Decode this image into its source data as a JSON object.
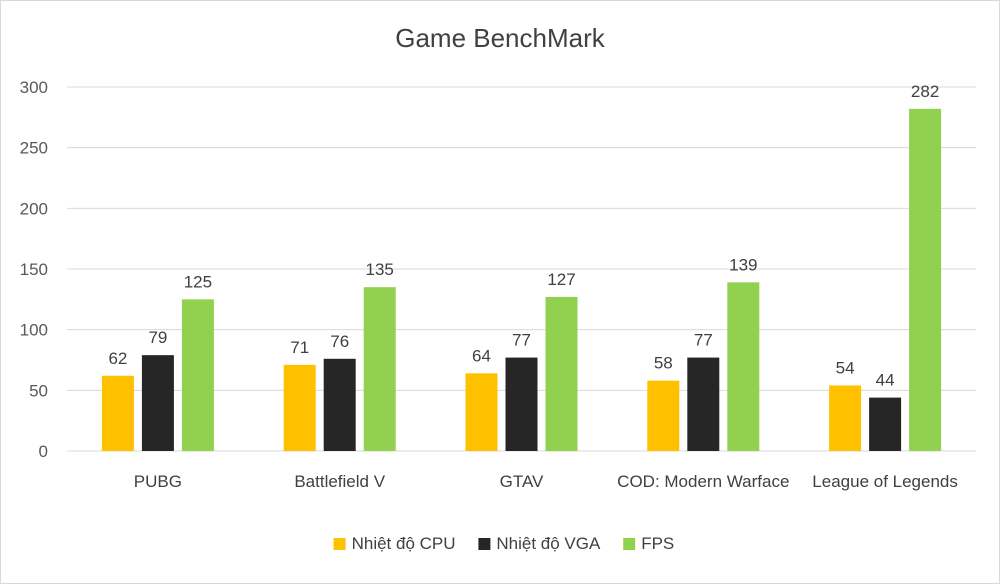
{
  "chart_data": {
    "type": "bar",
    "title": "Game BenchMark",
    "xlabel": "",
    "ylabel": "",
    "categories": [
      "PUBG",
      "Battlefield V",
      "GTAV",
      "COD: Modern Warface",
      "League of Legends"
    ],
    "series": [
      {
        "name": "Nhiệt độ CPU",
        "values": [
          62,
          71,
          64,
          58,
          54
        ],
        "color": "#FFC000"
      },
      {
        "name": "Nhiệt độ VGA",
        "values": [
          79,
          76,
          77,
          77,
          44
        ],
        "color": "#262626"
      },
      {
        "name": "FPS",
        "values": [
          125,
          135,
          127,
          139,
          282
        ],
        "color": "#92D050"
      }
    ],
    "ylim": [
      0,
      300
    ],
    "yticks": [
      0,
      50,
      100,
      150,
      200,
      250,
      300
    ],
    "grid": true,
    "data_labels": true,
    "legend_position": "bottom"
  }
}
